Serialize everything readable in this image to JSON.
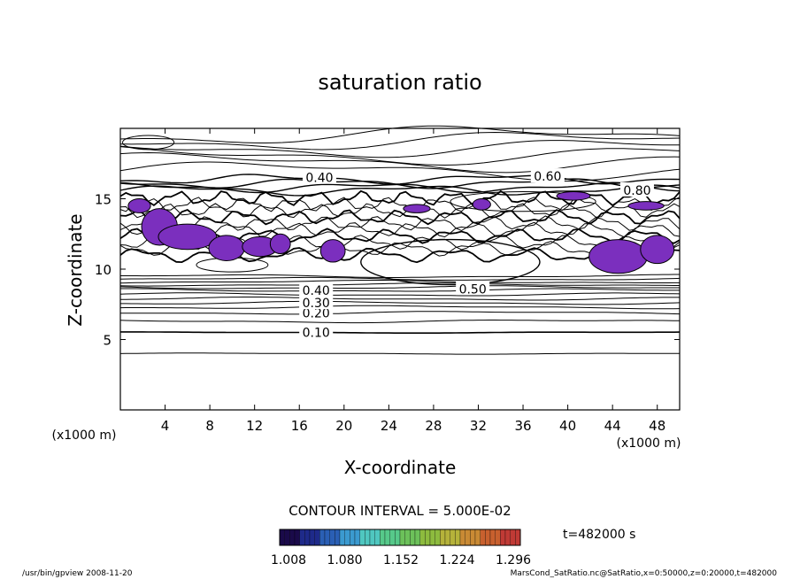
{
  "chart_data": {
    "type": "contour",
    "title": "saturation ratio",
    "xlabel": "X-coordinate",
    "ylabel": "Z-coordinate",
    "x_unit": "(x1000 m)",
    "xlim": [
      0,
      50
    ],
    "ylim": [
      0,
      20
    ],
    "x_ticks": [
      4,
      8,
      12,
      16,
      20,
      24,
      28,
      32,
      36,
      40,
      44,
      48
    ],
    "y_ticks": [
      5,
      10,
      15
    ],
    "contour_interval_text": "CONTOUR INTERVAL = 5.000E-02",
    "contour_labels": [
      {
        "text": "0.10",
        "x": 17.5,
        "z": 5.5
      },
      {
        "text": "0.20",
        "x": 17.5,
        "z": 6.9
      },
      {
        "text": "0.30",
        "x": 17.5,
        "z": 7.6
      },
      {
        "text": "0.40",
        "x": 17.5,
        "z": 8.5
      },
      {
        "text": "0.50",
        "x": 31.5,
        "z": 8.6
      },
      {
        "text": "0.60",
        "x": 38.2,
        "z": 16.6
      },
      {
        "text": "0.40",
        "x": 17.8,
        "z": 16.5
      },
      {
        "text": "0.80",
        "x": 46.2,
        "z": 15.6
      }
    ],
    "supersaturated_shading_color": "#7b2fbe",
    "colorbar": {
      "ticks": [
        "1.008",
        "1.080",
        "1.152",
        "1.224",
        "1.296"
      ],
      "colors": [
        "#1a0a4a",
        "#1e2a8a",
        "#2a5fb5",
        "#3b9ad0",
        "#4fc7c0",
        "#56c98a",
        "#6cc15a",
        "#8dbb3e",
        "#b5b23a",
        "#c98a34",
        "#c8602e",
        "#c03a35"
      ]
    },
    "time_label": "t=482000 s"
  },
  "footer": {
    "left": "/usr/bin/gpview  2008-11-20",
    "right": "MarsCond_SatRatio.nc@SatRatio,x=0:50000,z=0:20000,t=482000"
  }
}
